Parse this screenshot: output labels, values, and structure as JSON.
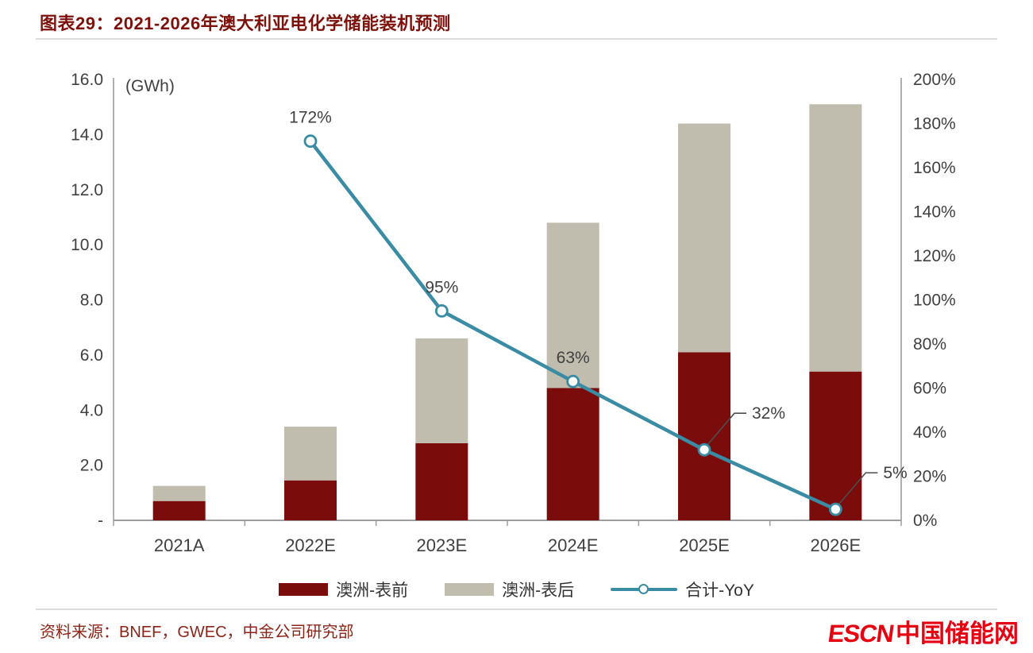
{
  "header": {
    "title": "图表29：2021-2026年澳大利亚电化学储能装机预测"
  },
  "footer": {
    "source": "资料来源：BNEF，GWEC，中金公司研究部",
    "logo_latin": "ESCN",
    "logo_cn": "中国储能网"
  },
  "colors": {
    "title_red": "#7D120C",
    "bar_front": "#7A0C0C",
    "bar_behind": "#C0BDAE",
    "line_teal": "#3A8CA4",
    "axis_line": "#9D9D9D",
    "tick_text": "#404040",
    "leader_line": "#4D4D4D",
    "source_red": "#8B2418",
    "logo_red": "#E60012"
  },
  "chart_data": {
    "type": "bar",
    "subtype": "stacked-bars-with-line",
    "unit_label": "(GWh)",
    "categories": [
      "2021A",
      "2022E",
      "2023E",
      "2024E",
      "2025E",
      "2026E"
    ],
    "series": [
      {
        "name": "澳洲-表前",
        "type": "bar",
        "color": "#7A0C0C",
        "values": [
          0.7,
          1.45,
          2.8,
          4.8,
          6.1,
          5.4
        ]
      },
      {
        "name": "澳洲-表后",
        "type": "bar",
        "color": "#C0BDAE",
        "values": [
          0.55,
          1.95,
          3.8,
          6.0,
          8.3,
          9.7
        ]
      },
      {
        "name": "合计-YoY",
        "type": "line",
        "axis": "right",
        "color": "#3A8CA4",
        "values": [
          null,
          172,
          95,
          63,
          32,
          5
        ],
        "labels": [
          "",
          "172%",
          "95%",
          "63%",
          "32%",
          "5%"
        ],
        "label_placement": [
          "",
          "above",
          "above",
          "above",
          "leader",
          "leader"
        ]
      }
    ],
    "left_axis": {
      "min": 0,
      "max": 16,
      "step": 2,
      "tick_labels": [
        "-",
        "2.0",
        "4.0",
        "6.0",
        "8.0",
        "10.0",
        "12.0",
        "14.0",
        "16.0"
      ]
    },
    "right_axis": {
      "min": 0,
      "max": 200,
      "step": 20,
      "tick_labels": [
        "0%",
        "20%",
        "40%",
        "60%",
        "80%",
        "100%",
        "120%",
        "140%",
        "160%",
        "180%",
        "200%"
      ]
    },
    "grid": false,
    "legend_position": "bottom",
    "totals_gwh": [
      1.25,
      3.4,
      6.6,
      10.8,
      14.4,
      15.1
    ]
  }
}
